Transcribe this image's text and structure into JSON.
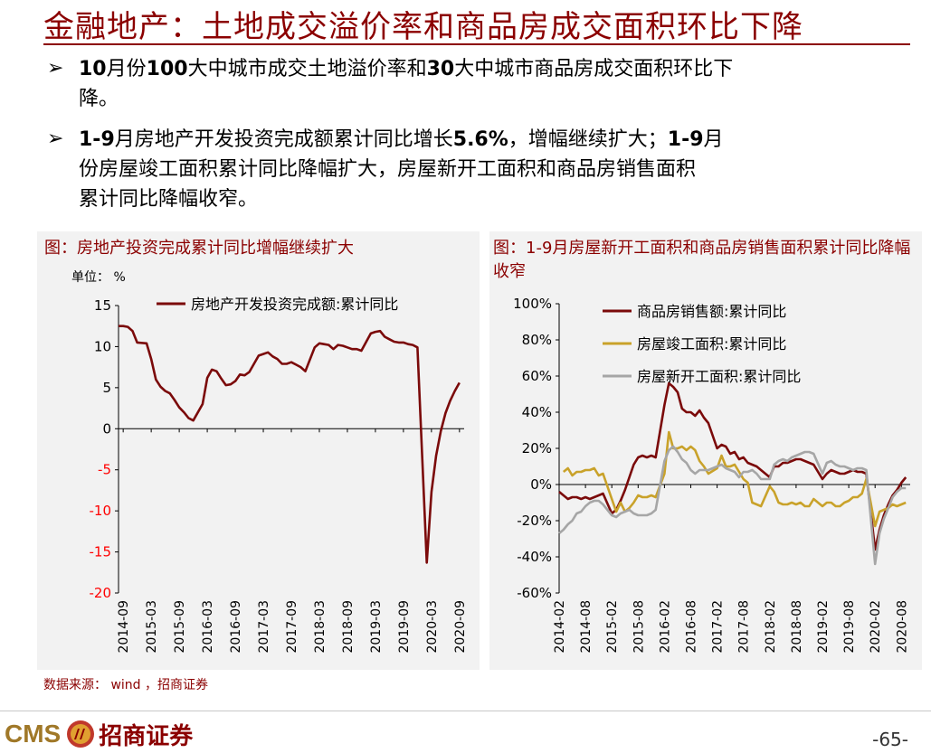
{
  "page": {
    "title": "金融地产：土地成交溢价率和商品房成交面积环比下降",
    "bullets": [
      {
        "parts": [
          {
            "t": "10",
            "b": true
          },
          {
            "t": "月份",
            "b": false
          },
          {
            "t": "100",
            "b": true
          },
          {
            "t": "大中城市成交土地溢价率和",
            "b": false
          },
          {
            "t": "30",
            "b": true
          },
          {
            "t": "大中城市商品房成交面积环比下",
            "b": false
          }
        ],
        "line2": "降。"
      },
      {
        "parts": [
          {
            "t": "1-9",
            "b": true
          },
          {
            "t": "月房地产开发投资完成额累计同比增长",
            "b": false
          },
          {
            "t": "5.6%",
            "b": true
          },
          {
            "t": "，增幅继续扩大；",
            "b": false
          },
          {
            "t": "1-9",
            "b": true
          },
          {
            "t": "月",
            "b": false
          }
        ],
        "line2": "份房屋竣工面积累计同比降幅扩大，房屋新开工面积和商品房销售面积",
        "line3": "累计同比降幅收窄。"
      }
    ],
    "bullet_marker": "➢",
    "source": "数据来源： wind ，招商证券",
    "logo_text": "CMS",
    "brand": "招商证券",
    "page_number": "-65-"
  },
  "colors": {
    "accent": "#8b0000",
    "dark_red": "#7b0a0a",
    "gold": "#c9a22a",
    "gray": "#a6a6a6",
    "negative_tick": "#ff0000"
  },
  "chart_data": [
    {
      "type": "line",
      "title": "图：房地产投资完成累计同比增幅继续扩大",
      "unit": "单位： %",
      "ylim": [
        -20,
        15
      ],
      "yticks": [
        15,
        10,
        5,
        0,
        -5,
        -10,
        -15,
        -20
      ],
      "xticks": [
        "2014-09",
        "2015-03",
        "2015-09",
        "2016-03",
        "2016-09",
        "2017-03",
        "2017-09",
        "2018-03",
        "2018-09",
        "2019-03",
        "2019-09",
        "2020-03",
        "2020-09"
      ],
      "x_range": [
        "2014-08",
        "2020-10"
      ],
      "legend": "upper-center",
      "series": [
        {
          "name": "房地产开发投资完成额:累计同比",
          "color": "#7b0a0a",
          "x": [
            "2014-08",
            "2014-09",
            "2014-10",
            "2014-11",
            "2014-12",
            "2015-02",
            "2015-03",
            "2015-04",
            "2015-05",
            "2015-06",
            "2015-07",
            "2015-08",
            "2015-09",
            "2015-10",
            "2015-11",
            "2015-12",
            "2016-02",
            "2016-03",
            "2016-04",
            "2016-05",
            "2016-06",
            "2016-07",
            "2016-08",
            "2016-09",
            "2016-10",
            "2016-11",
            "2016-12",
            "2017-02",
            "2017-03",
            "2017-04",
            "2017-05",
            "2017-06",
            "2017-07",
            "2017-08",
            "2017-09",
            "2017-10",
            "2017-11",
            "2017-12",
            "2018-02",
            "2018-03",
            "2018-04",
            "2018-05",
            "2018-06",
            "2018-07",
            "2018-08",
            "2018-09",
            "2018-10",
            "2018-11",
            "2018-12",
            "2019-02",
            "2019-03",
            "2019-04",
            "2019-05",
            "2019-06",
            "2019-07",
            "2019-08",
            "2019-09",
            "2019-10",
            "2019-11",
            "2019-12",
            "2020-02",
            "2020-03",
            "2020-04",
            "2020-05",
            "2020-06",
            "2020-07",
            "2020-08",
            "2020-09"
          ],
          "values": [
            12.5,
            12.5,
            12.4,
            11.9,
            10.5,
            10.4,
            8.5,
            6.0,
            5.1,
            4.6,
            4.3,
            3.5,
            2.6,
            2.0,
            1.3,
            1.0,
            3.0,
            6.2,
            7.2,
            7.0,
            6.1,
            5.3,
            5.4,
            5.8,
            6.6,
            6.5,
            6.9,
            8.9,
            9.1,
            9.3,
            8.8,
            8.5,
            7.9,
            7.9,
            8.1,
            7.8,
            7.5,
            7.0,
            9.9,
            10.4,
            10.3,
            10.2,
            9.7,
            10.2,
            10.1,
            9.9,
            9.7,
            9.7,
            9.5,
            11.6,
            11.8,
            11.9,
            11.2,
            10.9,
            10.6,
            10.5,
            10.5,
            10.3,
            10.2,
            9.9,
            -16.3,
            -7.7,
            -3.3,
            -0.3,
            1.9,
            3.4,
            4.6,
            5.6
          ]
        }
      ]
    },
    {
      "type": "line",
      "title": "图：1-9月房屋新开工面积和商品房销售面积累计同比降幅收窄",
      "ylim": [
        -60,
        100
      ],
      "yticks": [
        "100%",
        "80%",
        "60%",
        "40%",
        "20%",
        "0%",
        "-20%",
        "-40%",
        "-60%"
      ],
      "ytick_values": [
        100,
        80,
        60,
        40,
        20,
        0,
        -20,
        -40,
        -60
      ],
      "xticks": [
        "2014-02",
        "2014-08",
        "2015-02",
        "2015-08",
        "2016-02",
        "2016-08",
        "2017-02",
        "2017-08",
        "2018-02",
        "2018-08",
        "2019-02",
        "2019-08",
        "2020-02",
        "2020-08"
      ],
      "x_range": [
        "2014-02",
        "2020-10"
      ],
      "legend": "upper-left",
      "series": [
        {
          "name": "商品房销售额:累计同比",
          "color": "#7b0a0a",
          "x": [
            "2014-02",
            "2014-03",
            "2014-04",
            "2014-05",
            "2014-06",
            "2014-07",
            "2014-08",
            "2014-09",
            "2014-10",
            "2014-11",
            "2014-12",
            "2015-02",
            "2015-03",
            "2015-04",
            "2015-05",
            "2015-06",
            "2015-07",
            "2015-08",
            "2015-09",
            "2015-10",
            "2015-11",
            "2015-12",
            "2016-02",
            "2016-03",
            "2016-04",
            "2016-05",
            "2016-06",
            "2016-07",
            "2016-08",
            "2016-09",
            "2016-10",
            "2016-11",
            "2016-12",
            "2017-02",
            "2017-03",
            "2017-04",
            "2017-05",
            "2017-06",
            "2017-07",
            "2017-08",
            "2017-09",
            "2017-10",
            "2017-11",
            "2017-12",
            "2018-02",
            "2018-03",
            "2018-04",
            "2018-05",
            "2018-06",
            "2018-07",
            "2018-08",
            "2018-09",
            "2018-10",
            "2018-11",
            "2018-12",
            "2019-02",
            "2019-03",
            "2019-04",
            "2019-05",
            "2019-06",
            "2019-07",
            "2019-08",
            "2019-09",
            "2019-10",
            "2019-11",
            "2019-12",
            "2020-02",
            "2020-03",
            "2020-04",
            "2020-05",
            "2020-06",
            "2020-07",
            "2020-08",
            "2020-09"
          ],
          "values": [
            -4,
            -6,
            -8,
            -7,
            -7,
            -8,
            -7,
            -8,
            -7,
            -6,
            -5,
            -16,
            -14,
            -9,
            -3,
            4,
            11,
            15,
            16,
            15,
            16,
            15,
            44,
            56,
            54,
            51,
            42,
            40,
            40,
            38,
            41,
            37,
            34,
            20,
            22,
            21,
            17,
            18,
            14,
            15,
            12,
            11,
            10,
            8,
            4,
            10,
            10,
            12,
            12,
            13,
            14,
            14,
            13,
            12,
            11,
            3,
            6,
            8,
            7,
            6,
            6,
            7,
            8,
            7,
            7,
            6,
            -36,
            -25,
            -17,
            -11,
            -6,
            -3,
            1,
            4
          ]
        },
        {
          "name": "房屋竣工面积:累计同比",
          "color": "#c9a22a",
          "x": [
            "2014-03",
            "2014-04",
            "2014-05",
            "2014-06",
            "2014-07",
            "2014-08",
            "2014-09",
            "2014-10",
            "2014-11",
            "2014-12",
            "2015-02",
            "2015-03",
            "2015-04",
            "2015-05",
            "2015-06",
            "2015-07",
            "2015-08",
            "2015-09",
            "2015-10",
            "2015-11",
            "2015-12",
            "2016-02",
            "2016-03",
            "2016-04",
            "2016-05",
            "2016-06",
            "2016-07",
            "2016-08",
            "2016-09",
            "2016-10",
            "2016-11",
            "2016-12",
            "2017-02",
            "2017-03",
            "2017-04",
            "2017-05",
            "2017-06",
            "2017-07",
            "2017-08",
            "2017-09",
            "2017-10",
            "2017-11",
            "2017-12",
            "2018-02",
            "2018-03",
            "2018-04",
            "2018-05",
            "2018-06",
            "2018-07",
            "2018-08",
            "2018-09",
            "2018-10",
            "2018-11",
            "2018-12",
            "2019-02",
            "2019-03",
            "2019-04",
            "2019-05",
            "2019-06",
            "2019-07",
            "2019-08",
            "2019-09",
            "2019-10",
            "2019-11",
            "2019-12",
            "2020-02",
            "2020-03",
            "2020-04",
            "2020-05",
            "2020-06",
            "2020-07",
            "2020-08",
            "2020-09"
          ],
          "values": [
            7,
            9,
            5,
            7,
            7,
            8,
            8,
            9,
            5,
            6,
            -8,
            -15,
            -10,
            -15,
            -13,
            -10,
            -6,
            -7,
            -7,
            -6,
            -7,
            6,
            29,
            20,
            20,
            21,
            19,
            21,
            19,
            13,
            10,
            6,
            9,
            16,
            10,
            10,
            11,
            7,
            3,
            1,
            -10,
            -11,
            -12,
            -1,
            -4,
            -10,
            -11,
            -11,
            -10,
            -11,
            -10,
            -12,
            -12,
            -8,
            -12,
            -10,
            -10,
            -12,
            -12,
            -10,
            -9,
            -7,
            -7,
            -5,
            3,
            -23,
            -15,
            -14,
            -13,
            -11,
            -12,
            -11,
            -10
          ]
        },
        {
          "name": "房屋新开工面积:累计同比",
          "color": "#a6a6a6",
          "x": [
            "2014-02",
            "2014-03",
            "2014-04",
            "2014-05",
            "2014-06",
            "2014-07",
            "2014-08",
            "2014-09",
            "2014-10",
            "2014-11",
            "2014-12",
            "2015-02",
            "2015-03",
            "2015-04",
            "2015-05",
            "2015-06",
            "2015-07",
            "2015-08",
            "2015-09",
            "2015-10",
            "2015-11",
            "2015-12",
            "2016-02",
            "2016-03",
            "2016-04",
            "2016-05",
            "2016-06",
            "2016-07",
            "2016-08",
            "2016-09",
            "2016-10",
            "2016-11",
            "2016-12",
            "2017-02",
            "2017-03",
            "2017-04",
            "2017-05",
            "2017-06",
            "2017-07",
            "2017-08",
            "2017-09",
            "2017-10",
            "2017-11",
            "2017-12",
            "2018-02",
            "2018-03",
            "2018-04",
            "2018-05",
            "2018-06",
            "2018-07",
            "2018-08",
            "2018-09",
            "2018-10",
            "2018-11",
            "2018-12",
            "2019-02",
            "2019-03",
            "2019-04",
            "2019-05",
            "2019-06",
            "2019-07",
            "2019-08",
            "2019-09",
            "2019-10",
            "2019-11",
            "2019-12",
            "2020-02",
            "2020-03",
            "2020-04",
            "2020-05",
            "2020-06",
            "2020-07",
            "2020-08",
            "2020-09"
          ],
          "values": [
            -27,
            -25,
            -22,
            -20,
            -16,
            -15,
            -12,
            -10,
            -9,
            -9,
            -11,
            -17,
            -18,
            -16,
            -15,
            -14,
            -16,
            -17,
            -17,
            -17,
            -16,
            -14,
            13,
            19,
            21,
            18,
            14,
            12,
            8,
            6,
            8,
            8,
            8,
            10,
            11,
            9,
            8,
            7,
            4,
            7,
            7,
            8,
            6,
            3,
            3,
            11,
            13,
            14,
            13,
            15,
            16,
            17,
            18,
            18,
            17,
            6,
            12,
            13,
            11,
            10,
            10,
            9,
            8,
            9,
            9,
            8,
            -44,
            -27,
            -19,
            -13,
            -7,
            -4,
            -2,
            -2
          ]
        }
      ]
    }
  ]
}
